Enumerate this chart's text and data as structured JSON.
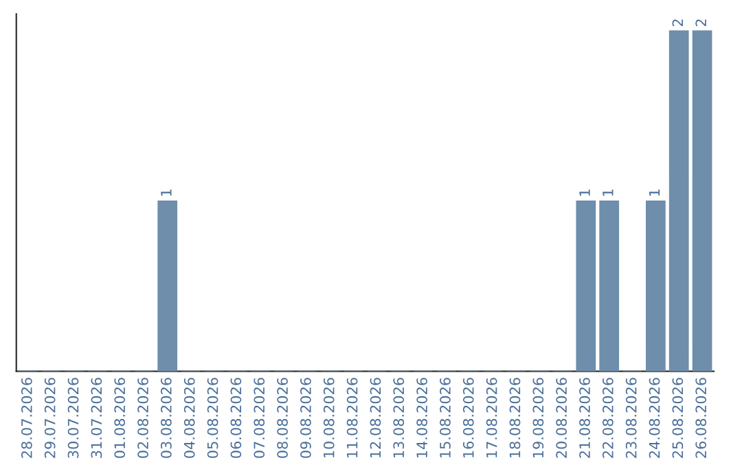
{
  "chart_data": {
    "type": "bar",
    "categories": [
      "28.07.2026",
      "29.07.2026",
      "30.07.2026",
      "31.07.2026",
      "01.08.2026",
      "02.08.2026",
      "03.08.2026",
      "04.08.2026",
      "05.08.2026",
      "06.08.2026",
      "07.08.2026",
      "08.08.2026",
      "09.08.2026",
      "10.08.2026",
      "11.08.2026",
      "12.08.2026",
      "13.08.2026",
      "14.08.2026",
      "15.08.2026",
      "16.08.2026",
      "17.08.2026",
      "18.08.2026",
      "19.08.2026",
      "20.08.2026",
      "21.08.2026",
      "22.08.2026",
      "23.08.2026",
      "24.08.2026",
      "25.08.2026",
      "26.08.2026"
    ],
    "values": [
      0,
      0,
      0,
      0,
      0,
      0,
      1,
      0,
      0,
      0,
      0,
      0,
      0,
      0,
      0,
      0,
      0,
      0,
      0,
      0,
      0,
      0,
      0,
      0,
      1,
      1,
      0,
      1,
      2,
      2
    ],
    "value_labels": [
      null,
      null,
      null,
      null,
      null,
      null,
      "1",
      null,
      null,
      null,
      null,
      null,
      null,
      null,
      null,
      null,
      null,
      null,
      null,
      null,
      null,
      null,
      null,
      null,
      "1",
      "1",
      null,
      "1",
      "2",
      "2"
    ],
    "color": "#6e8eab",
    "tick_labels": "x",
    "grid": false,
    "legend": false
  }
}
